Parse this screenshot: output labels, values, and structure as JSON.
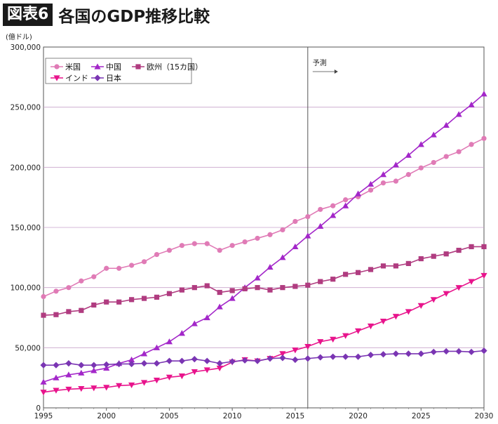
{
  "header": {
    "badge": "図表6",
    "title": "各国のGDP推移比較"
  },
  "chart_data": {
    "type": "line",
    "unit_label": "(億ドル)",
    "x_ticks": [
      "1995",
      "2000",
      "2005",
      "2010",
      "2015",
      "2020",
      "2025",
      "2030"
    ],
    "y_ticks": [
      "0",
      "50,000",
      "100,000",
      "150,000",
      "200,000",
      "250,000",
      "300,000"
    ],
    "xlim": [
      1995,
      2030
    ],
    "ylim": [
      0,
      300000
    ],
    "forecast_label": "予測",
    "forecast_year": 2016,
    "grid": "horizontal",
    "legend": "top-left",
    "x": [
      1995,
      1996,
      1997,
      1998,
      1999,
      2000,
      2001,
      2002,
      2003,
      2004,
      2005,
      2006,
      2007,
      2008,
      2009,
      2010,
      2011,
      2012,
      2013,
      2014,
      2015,
      2016,
      2017,
      2018,
      2019,
      2020,
      2021,
      2022,
      2023,
      2024,
      2025,
      2026,
      2027,
      2028,
      2029,
      2030
    ],
    "series": [
      {
        "name": "米国",
        "color": "#e07bb6",
        "marker": "circle",
        "values": [
          92500,
          97000,
          100000,
          105500,
          109000,
          116000,
          116000,
          118500,
          121500,
          127500,
          131000,
          135000,
          136500,
          136500,
          131000,
          135000,
          138000,
          141000,
          144000,
          148000,
          155000,
          159000,
          165000,
          168000,
          173000,
          175500,
          181000,
          187000,
          188500,
          194000,
          199500,
          204000,
          209000,
          213000,
          219000,
          224000
        ]
      },
      {
        "name": "中国",
        "color": "#a327c9",
        "marker": "triangle-up",
        "values": [
          21500,
          25000,
          27500,
          29000,
          31000,
          33000,
          37000,
          40000,
          45000,
          50000,
          55000,
          62000,
          70000,
          75000,
          84000,
          91000,
          100000,
          108000,
          117000,
          125000,
          134000,
          143000,
          151000,
          160000,
          168000,
          178000,
          186000,
          194000,
          202000,
          210000,
          219000,
          227000,
          235000,
          244000,
          252000,
          261000
        ]
      },
      {
        "name": "欧州（15カ国）",
        "color": "#b03c80",
        "marker": "square",
        "values": [
          77000,
          77500,
          80000,
          81000,
          85500,
          88000,
          88000,
          90000,
          91000,
          92000,
          95000,
          98000,
          100000,
          101500,
          96000,
          97500,
          99000,
          100000,
          98000,
          100000,
          101000,
          102000,
          105000,
          107000,
          111000,
          112500,
          115000,
          118000,
          118000,
          120000,
          124000,
          126000,
          128000,
          131000,
          134000,
          134000
        ]
      },
      {
        "name": "インド",
        "color": "#e8148c",
        "marker": "triangle-down",
        "values": [
          13000,
          14500,
          15500,
          16000,
          16500,
          17000,
          18500,
          19000,
          21000,
          23000,
          25500,
          26500,
          30000,
          31500,
          33000,
          38000,
          40000,
          39000,
          41000,
          45000,
          48000,
          51000,
          55000,
          57000,
          60000,
          64000,
          68000,
          72000,
          76000,
          80000,
          85000,
          90000,
          95000,
          100000,
          105000,
          110000
        ]
      },
      {
        "name": "日本",
        "color": "#7a35b3",
        "marker": "diamond",
        "values": [
          35500,
          35500,
          37000,
          35500,
          35500,
          36000,
          36500,
          36500,
          37000,
          37000,
          39000,
          39000,
          40500,
          39000,
          37000,
          38500,
          39500,
          39000,
          41000,
          41500,
          40000,
          41000,
          42000,
          42500,
          42500,
          42500,
          44000,
          44500,
          45000,
          45000,
          45000,
          46500,
          47000,
          47000,
          46500,
          47500
        ]
      }
    ]
  }
}
